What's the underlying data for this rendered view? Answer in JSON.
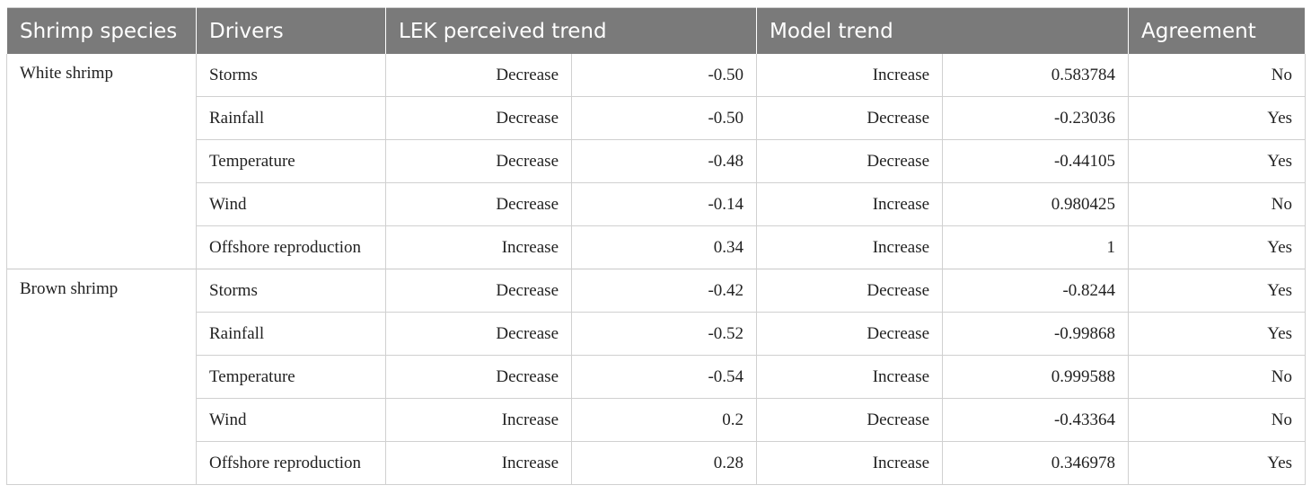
{
  "table": {
    "headers": [
      "Shrimp species",
      "Drivers",
      "LEK perceived trend",
      "Model trend",
      "Agreement"
    ],
    "groups": [
      {
        "species": "White shrimp",
        "rows": [
          {
            "driver": "Storms",
            "lek_trend": "Decrease",
            "lek_value": "-0.50",
            "model_trend": "Increase",
            "model_value": "0.583784",
            "agreement": "No"
          },
          {
            "driver": "Rainfall",
            "lek_trend": "Decrease",
            "lek_value": "-0.50",
            "model_trend": "Decrease",
            "model_value": "-0.23036",
            "agreement": "Yes"
          },
          {
            "driver": "Temperature",
            "lek_trend": "Decrease",
            "lek_value": "-0.48",
            "model_trend": "Decrease",
            "model_value": "-0.44105",
            "agreement": "Yes"
          },
          {
            "driver": "Wind",
            "lek_trend": "Decrease",
            "lek_value": "-0.14",
            "model_trend": "Increase",
            "model_value": "0.980425",
            "agreement": "No"
          },
          {
            "driver": "Offshore reproduction",
            "lek_trend": "Increase",
            "lek_value": "0.34",
            "model_trend": "Increase",
            "model_value": "1",
            "agreement": "Yes"
          }
        ]
      },
      {
        "species": "Brown shrimp",
        "rows": [
          {
            "driver": "Storms",
            "lek_trend": "Decrease",
            "lek_value": "-0.42",
            "model_trend": "Decrease",
            "model_value": "-0.8244",
            "agreement": "Yes"
          },
          {
            "driver": "Rainfall",
            "lek_trend": "Decrease",
            "lek_value": "-0.52",
            "model_trend": "Decrease",
            "model_value": "-0.99868",
            "agreement": "Yes"
          },
          {
            "driver": "Temperature",
            "lek_trend": "Decrease",
            "lek_value": "-0.54",
            "model_trend": "Increase",
            "model_value": "0.999588",
            "agreement": "No"
          },
          {
            "driver": "Wind",
            "lek_trend": "Increase",
            "lek_value": "0.2",
            "model_trend": "Decrease",
            "model_value": "-0.43364",
            "agreement": "No"
          },
          {
            "driver": "Offshore reproduction",
            "lek_trend": "Increase",
            "lek_value": "0.28",
            "model_trend": "Increase",
            "model_value": "0.346978",
            "agreement": "Yes"
          }
        ]
      }
    ]
  }
}
